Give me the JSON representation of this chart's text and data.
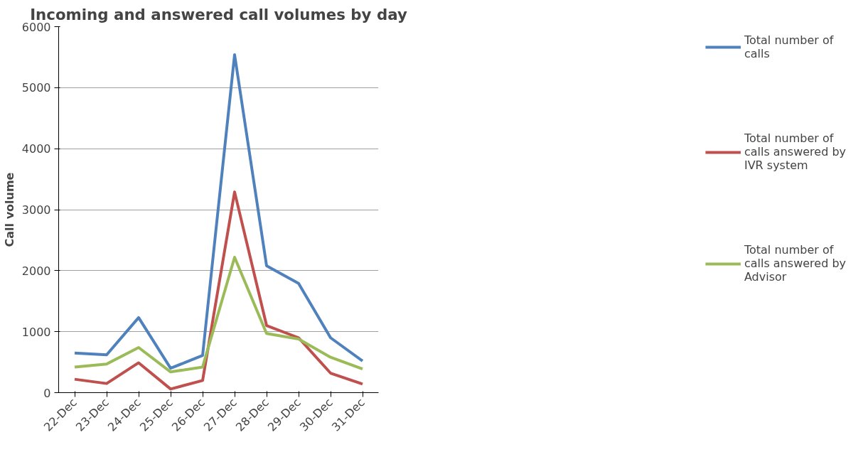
{
  "chart_data": {
    "type": "line",
    "title": "Incoming and answered call volumes by day",
    "ylabel": "Call volume",
    "categories": [
      "22-Dec",
      "23-Dec",
      "24-Dec",
      "25-Dec",
      "26-Dec",
      "27-Dec",
      "28-Dec",
      "29-Dec",
      "30-Dec",
      "31-Dec"
    ],
    "series": [
      {
        "name": "Total number of calls",
        "color": "#4f81bd",
        "values": [
          650,
          620,
          1230,
          400,
          610,
          5540,
          2080,
          1790,
          900,
          520
        ]
      },
      {
        "name": "Total number of calls answered by IVR system",
        "color": "#c0504d",
        "values": [
          220,
          150,
          490,
          60,
          200,
          3290,
          1100,
          900,
          320,
          140
        ]
      },
      {
        "name": "Total number of calls answered by Advisor",
        "color": "#9bbb59",
        "values": [
          420,
          470,
          740,
          340,
          420,
          2220,
          970,
          880,
          580,
          390
        ]
      }
    ],
    "ylim": [
      0,
      6000
    ],
    "yticks": [
      0,
      1000,
      2000,
      3000,
      4000,
      5000,
      6000
    ],
    "grid": "y",
    "legend": "right",
    "marker": "none",
    "line_style": "solid"
  }
}
